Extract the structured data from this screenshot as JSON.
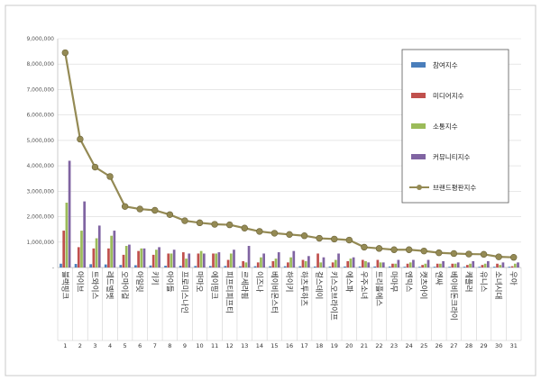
{
  "chart_data": {
    "type": "bar",
    "ylim": [
      0,
      9000000
    ],
    "y_ticks": [
      "-",
      "1,000,000",
      "2,000,000",
      "3,000,000",
      "4,000,000",
      "5,000,000",
      "6,000,000",
      "7,000,000",
      "8,000,000",
      "9,000,000"
    ],
    "grid": true,
    "legend_position": "right",
    "categories": [
      "블랙핑크",
      "아이브",
      "트와이스",
      "레드벨벳",
      "오마이걸",
      "아일릿",
      "키키",
      "아이들",
      "프로미스나인",
      "마마오",
      "에이핑크",
      "피프티피프티",
      "르세라핌",
      "이즈나",
      "베이비몬스터",
      "하이키",
      "하츠투하츠",
      "걸스데이",
      "키스오브라이프",
      "에스파",
      "우주소녀",
      "트리플에스",
      "마마무",
      "엔믹스",
      "캣츠아이",
      "엔싸",
      "베이비돈크라이",
      "케플러",
      "유니스",
      "소녀시대",
      "우아"
    ],
    "ranks": [
      "1",
      "2",
      "3",
      "4",
      "5",
      "6",
      "7",
      "8",
      "9",
      "10",
      "11",
      "12",
      "13",
      "14",
      "15",
      "16",
      "17",
      "18",
      "19",
      "20",
      "21",
      "22",
      "23",
      "24",
      "25",
      "26",
      "27",
      "28",
      "29",
      "30",
      "31"
    ],
    "series": [
      {
        "name": "참여지수",
        "color": "#4a7ebb",
        "kind": "bar",
        "values": [
          150000,
          140000,
          130000,
          120000,
          100000,
          90000,
          80000,
          70000,
          70000,
          60000,
          60000,
          60000,
          50000,
          50000,
          50000,
          50000,
          50000,
          40000,
          40000,
          40000,
          40000,
          40000,
          40000,
          30000,
          30000,
          30000,
          30000,
          30000,
          30000,
          30000,
          30000
        ]
      },
      {
        "name": "미디어지수",
        "color": "#c0504d",
        "kind": "bar",
        "values": [
          1450000,
          800000,
          750000,
          750000,
          500000,
          650000,
          500000,
          550000,
          600000,
          550000,
          550000,
          300000,
          250000,
          200000,
          250000,
          200000,
          300000,
          550000,
          200000,
          250000,
          300000,
          300000,
          150000,
          150000,
          100000,
          150000,
          150000,
          100000,
          100000,
          150000,
          50000
        ]
      },
      {
        "name": "소통지수",
        "color": "#9bbb59",
        "kind": "bar",
        "values": [
          2550000,
          1450000,
          1150000,
          1250000,
          850000,
          750000,
          700000,
          550000,
          350000,
          650000,
          550000,
          550000,
          200000,
          400000,
          350000,
          400000,
          250000,
          200000,
          300000,
          350000,
          250000,
          200000,
          150000,
          200000,
          150000,
          150000,
          150000,
          150000,
          150000,
          100000,
          150000
        ]
      },
      {
        "name": "커뮤니티지수",
        "color": "#8064a2",
        "kind": "bar",
        "values": [
          4200000,
          2600000,
          1650000,
          1450000,
          900000,
          750000,
          800000,
          700000,
          550000,
          550000,
          600000,
          700000,
          850000,
          550000,
          600000,
          650000,
          450000,
          400000,
          550000,
          400000,
          200000,
          200000,
          300000,
          300000,
          300000,
          250000,
          200000,
          250000,
          250000,
          200000,
          200000
        ]
      },
      {
        "name": "브랜드평판지수",
        "color": "#948a54",
        "kind": "line",
        "values": [
          8450000,
          5050000,
          3950000,
          3580000,
          2400000,
          2300000,
          2250000,
          2080000,
          1840000,
          1760000,
          1700000,
          1680000,
          1550000,
          1420000,
          1350000,
          1300000,
          1250000,
          1150000,
          1120000,
          1080000,
          800000,
          750000,
          700000,
          700000,
          650000,
          580000,
          550000,
          530000,
          520000,
          420000,
          400000
        ]
      }
    ]
  }
}
